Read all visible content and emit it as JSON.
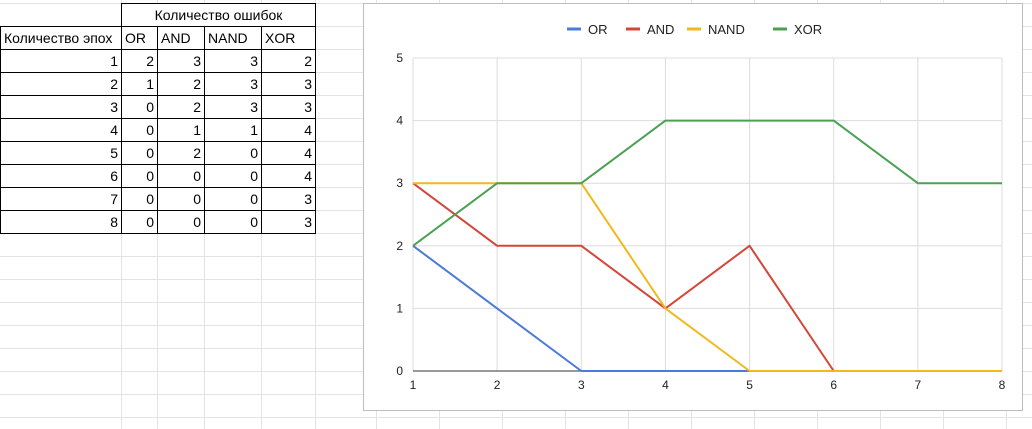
{
  "sheet": {
    "group_header": "Количество ошибок",
    "columns": [
      "Количество эпох",
      "OR",
      "AND",
      "NAND",
      "XOR"
    ],
    "rows": [
      [
        "1",
        "2",
        "3",
        "3",
        "2"
      ],
      [
        "2",
        "1",
        "2",
        "3",
        "3"
      ],
      [
        "3",
        "0",
        "2",
        "3",
        "3"
      ],
      [
        "4",
        "0",
        "1",
        "1",
        "4"
      ],
      [
        "5",
        "0",
        "2",
        "0",
        "4"
      ],
      [
        "6",
        "0",
        "0",
        "0",
        "4"
      ],
      [
        "7",
        "0",
        "0",
        "0",
        "3"
      ],
      [
        "8",
        "0",
        "0",
        "0",
        "3"
      ]
    ]
  },
  "chart_data": {
    "type": "line",
    "x": [
      1,
      2,
      3,
      4,
      5,
      6,
      7,
      8
    ],
    "series": [
      {
        "name": "OR",
        "color": "#4a7bd8",
        "values": [
          2,
          1,
          0,
          0,
          0,
          0,
          0,
          0
        ]
      },
      {
        "name": "AND",
        "color": "#d44638",
        "values": [
          3,
          2,
          2,
          1,
          2,
          0,
          0,
          0
        ]
      },
      {
        "name": "NAND",
        "color": "#f2b81c",
        "values": [
          3,
          3,
          3,
          1,
          0,
          0,
          0,
          0
        ]
      },
      {
        "name": "XOR",
        "color": "#4aa152",
        "values": [
          2,
          3,
          3,
          4,
          4,
          4,
          3,
          3
        ]
      }
    ],
    "xlim": [
      1,
      8
    ],
    "ylim": [
      0,
      5
    ],
    "yticks": [
      "0",
      "1",
      "2",
      "3",
      "4",
      "5"
    ],
    "xticks": [
      "1",
      "2",
      "3",
      "4",
      "5",
      "6",
      "7",
      "8"
    ],
    "grid": true,
    "legend_position": "top"
  }
}
